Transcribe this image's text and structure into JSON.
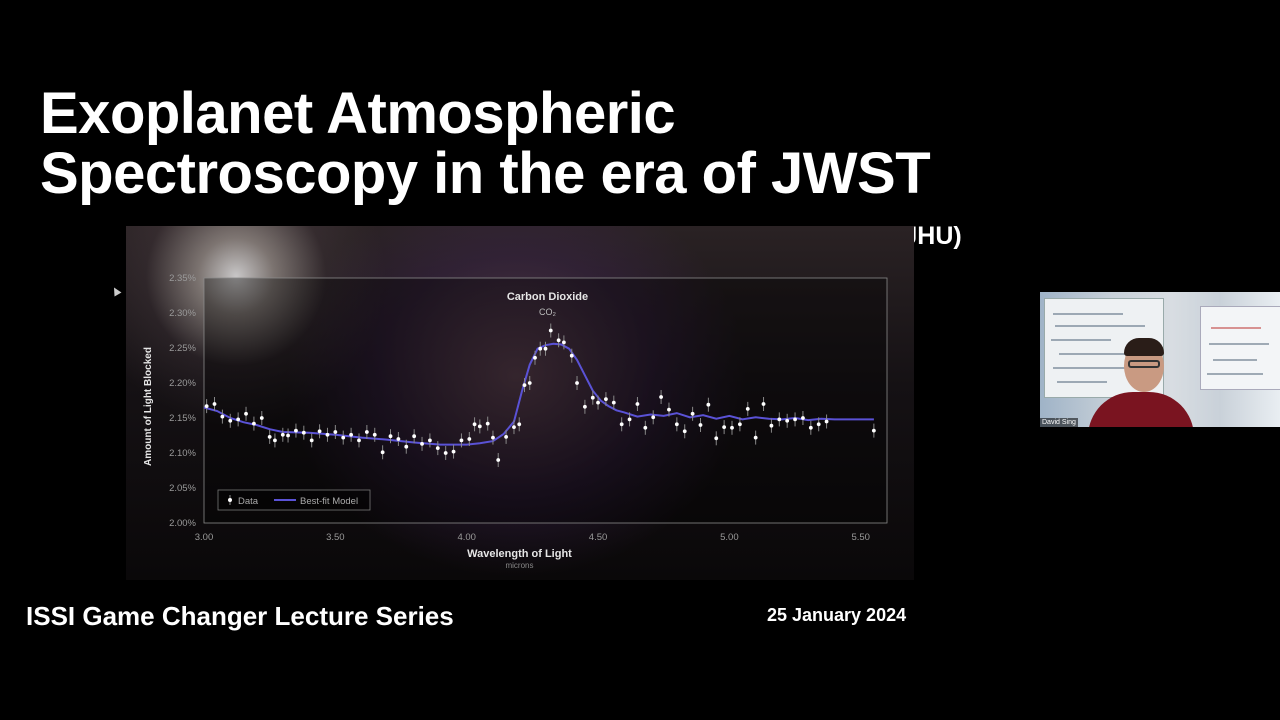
{
  "slide": {
    "title_line1": "Exoplanet Atmospheric",
    "title_line2": "Spectroscopy in the era of JWST",
    "author": "David K. Sing (JHU)",
    "series": "ISSI Game Changer Lecture Series",
    "date": "25 January 2024"
  },
  "video": {
    "participant_name": "David Sing"
  },
  "chart_data": {
    "type": "scatter",
    "annotation_title": "Carbon Dioxide",
    "annotation_sub": "CO₂",
    "annotation_x": 4.3,
    "xlabel": "Wavelength of Light",
    "xunit": "microns",
    "ylabel": "Amount of Light Blocked",
    "xlim": [
      3.0,
      5.6
    ],
    "ylim": [
      2.0,
      2.35
    ],
    "xticks": [
      3.0,
      3.5,
      4.0,
      4.5,
      5.0,
      5.5
    ],
    "xtick_labels": [
      "3.00",
      "3.50",
      "4.00",
      "4.50",
      "5.00",
      "5.50"
    ],
    "yticks": [
      2.0,
      2.05,
      2.1,
      2.15,
      2.2,
      2.25,
      2.3,
      2.35
    ],
    "ytick_labels": [
      "2.00%",
      "2.05%",
      "2.10%",
      "2.15%",
      "2.20%",
      "2.25%",
      "2.30%",
      "2.35%"
    ],
    "legend": [
      "Data",
      "Best-fit Model"
    ],
    "legend_position": "bottom-left",
    "colors": {
      "data": "#ffffff",
      "model": "#5a52d6",
      "error": "#888888"
    },
    "series": [
      {
        "name": "Data",
        "x": [
          3.01,
          3.04,
          3.07,
          3.1,
          3.13,
          3.16,
          3.19,
          3.22,
          3.25,
          3.27,
          3.3,
          3.32,
          3.35,
          3.38,
          3.41,
          3.44,
          3.47,
          3.5,
          3.53,
          3.56,
          3.59,
          3.62,
          3.65,
          3.68,
          3.71,
          3.74,
          3.77,
          3.8,
          3.83,
          3.86,
          3.89,
          3.92,
          3.95,
          3.98,
          4.01,
          4.03,
          4.05,
          4.08,
          4.1,
          4.12,
          4.15,
          4.18,
          4.2,
          4.22,
          4.24,
          4.26,
          4.28,
          4.3,
          4.32,
          4.35,
          4.37,
          4.4,
          4.42,
          4.45,
          4.48,
          4.5,
          4.53,
          4.56,
          4.59,
          4.62,
          4.65,
          4.68,
          4.71,
          4.74,
          4.77,
          4.8,
          4.83,
          4.86,
          4.89,
          4.92,
          4.95,
          4.98,
          5.01,
          5.04,
          5.07,
          5.1,
          5.13,
          5.16,
          5.19,
          5.22,
          5.25,
          5.28,
          5.31,
          5.34,
          5.37,
          5.55
        ],
        "y": [
          2.167,
          2.17,
          2.152,
          2.146,
          2.148,
          2.156,
          2.142,
          2.15,
          2.123,
          2.118,
          2.126,
          2.125,
          2.132,
          2.129,
          2.118,
          2.131,
          2.126,
          2.13,
          2.122,
          2.126,
          2.118,
          2.13,
          2.126,
          2.101,
          2.124,
          2.12,
          2.109,
          2.124,
          2.113,
          2.118,
          2.107,
          2.1,
          2.102,
          2.118,
          2.12,
          2.141,
          2.138,
          2.142,
          2.122,
          2.09,
          2.123,
          2.137,
          2.141,
          2.197,
          2.2,
          2.236,
          2.249,
          2.249,
          2.275,
          2.261,
          2.258,
          2.239,
          2.2,
          2.166,
          2.179,
          2.172,
          2.177,
          2.172,
          2.141,
          2.148,
          2.17,
          2.136,
          2.151,
          2.18,
          2.162,
          2.141,
          2.131,
          2.156,
          2.14,
          2.169,
          2.121,
          2.137,
          2.136,
          2.141,
          2.163,
          2.122,
          2.17,
          2.139,
          2.148,
          2.146,
          2.148,
          2.15,
          2.136,
          2.141,
          2.145,
          2.132
        ]
      },
      {
        "name": "Best-fit Model",
        "x": [
          3.0,
          3.05,
          3.1,
          3.15,
          3.2,
          3.25,
          3.3,
          3.4,
          3.5,
          3.6,
          3.7,
          3.8,
          3.9,
          4.0,
          4.05,
          4.1,
          4.14,
          4.18,
          4.21,
          4.24,
          4.27,
          4.3,
          4.33,
          4.36,
          4.39,
          4.42,
          4.45,
          4.48,
          4.51,
          4.54,
          4.57,
          4.6,
          4.65,
          4.7,
          4.75,
          4.8,
          4.85,
          4.9,
          4.95,
          5.0,
          5.05,
          5.1,
          5.15,
          5.2,
          5.25,
          5.3,
          5.35,
          5.4,
          5.5,
          5.55
        ],
        "y": [
          2.165,
          2.16,
          2.15,
          2.144,
          2.14,
          2.134,
          2.13,
          2.129,
          2.126,
          2.122,
          2.119,
          2.115,
          2.112,
          2.112,
          2.114,
          2.117,
          2.127,
          2.145,
          2.188,
          2.226,
          2.249,
          2.254,
          2.256,
          2.255,
          2.249,
          2.233,
          2.211,
          2.189,
          2.175,
          2.167,
          2.161,
          2.158,
          2.152,
          2.155,
          2.153,
          2.157,
          2.151,
          2.154,
          2.149,
          2.153,
          2.148,
          2.151,
          2.149,
          2.148,
          2.15,
          2.147,
          2.149,
          2.148,
          2.148,
          2.148
        ]
      }
    ]
  }
}
